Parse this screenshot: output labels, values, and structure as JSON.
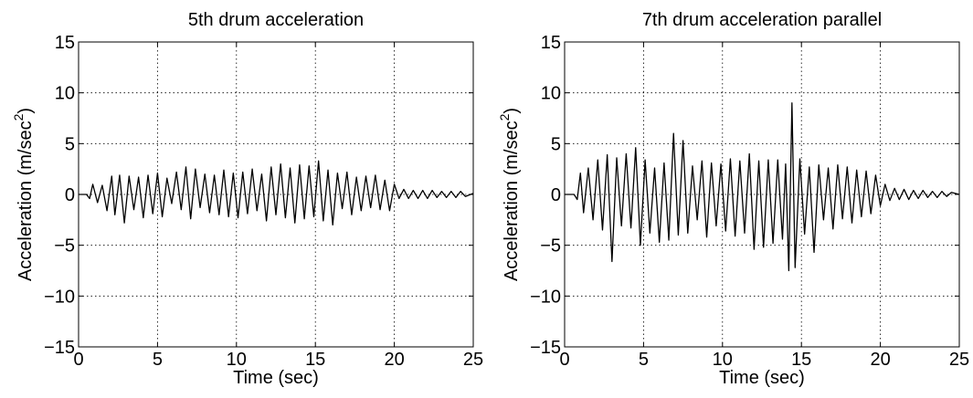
{
  "chart_data": [
    {
      "type": "line",
      "title": "5th drum acceleration",
      "xlabel": "Time (sec)",
      "ylabel": "Acceleration (m/sec",
      "ylabel_sup": "2",
      "ylabel_close": ")",
      "xlim": [
        0,
        25
      ],
      "ylim": [
        -15,
        15
      ],
      "xticks": [
        0,
        5,
        10,
        15,
        20,
        25
      ],
      "yticks": [
        -15,
        -10,
        -5,
        0,
        5,
        10,
        15
      ],
      "xtick_labels": [
        "0",
        "5",
        "10",
        "15",
        "20",
        "25"
      ],
      "ytick_labels": [
        "−15",
        "−10",
        "−5",
        "0",
        "5",
        "10",
        "15"
      ],
      "grid": true,
      "series": [
        {
          "color": "#000000",
          "x": [
            0.0,
            0.5,
            0.7,
            0.9,
            1.2,
            1.5,
            1.8,
            2.1,
            2.3,
            2.6,
            2.9,
            3.2,
            3.5,
            3.8,
            4.1,
            4.4,
            4.7,
            5.0,
            5.3,
            5.6,
            5.9,
            6.2,
            6.5,
            6.8,
            7.1,
            7.4,
            7.7,
            8.0,
            8.3,
            8.6,
            8.9,
            9.2,
            9.5,
            9.8,
            10.1,
            10.4,
            10.7,
            11.0,
            11.3,
            11.6,
            11.9,
            12.2,
            12.5,
            12.8,
            13.1,
            13.4,
            13.7,
            14.0,
            14.3,
            14.6,
            14.9,
            15.2,
            15.5,
            15.8,
            16.1,
            16.4,
            16.7,
            17.0,
            17.3,
            17.6,
            17.9,
            18.2,
            18.5,
            18.8,
            19.1,
            19.4,
            19.7,
            20.0,
            20.3,
            20.6,
            20.9,
            21.2,
            21.5,
            21.8,
            22.1,
            22.4,
            22.7,
            23.0,
            23.3,
            23.6,
            23.9,
            24.2,
            24.5,
            25.0
          ],
          "y": [
            0.0,
            0.0,
            -0.4,
            1.0,
            -0.8,
            0.9,
            -1.6,
            1.8,
            -2.0,
            1.9,
            -2.8,
            1.8,
            -1.5,
            1.7,
            -2.3,
            1.9,
            -1.9,
            2.1,
            -2.2,
            1.6,
            -0.9,
            2.2,
            -1.5,
            2.7,
            -2.4,
            2.5,
            -1.3,
            2.0,
            -1.8,
            1.9,
            -2.0,
            2.4,
            -2.2,
            2.1,
            -2.3,
            2.2,
            -1.9,
            2.5,
            -1.6,
            2.0,
            -2.6,
            2.7,
            -2.0,
            3.0,
            -2.3,
            2.6,
            -2.8,
            2.9,
            -2.4,
            2.8,
            -2.2,
            3.3,
            -2.6,
            2.4,
            -3.0,
            2.1,
            -1.4,
            2.2,
            -2.0,
            1.7,
            -1.6,
            1.8,
            -1.3,
            1.9,
            -1.5,
            1.4,
            -1.6,
            1.0,
            -0.4,
            0.5,
            -0.4,
            0.4,
            -0.4,
            0.4,
            -0.4,
            0.4,
            -0.3,
            0.3,
            -0.3,
            0.3,
            -0.3,
            0.3,
            -0.2,
            0.1
          ]
        }
      ]
    },
    {
      "type": "line",
      "title": "7th drum acceleration parallel",
      "xlabel": "Time (sec)",
      "ylabel": "Acceleration (m/sec",
      "ylabel_sup": "2",
      "ylabel_close": ")",
      "xlim": [
        0,
        25
      ],
      "ylim": [
        -15,
        15
      ],
      "xticks": [
        0,
        5,
        10,
        15,
        20,
        25
      ],
      "yticks": [
        -15,
        -10,
        -5,
        0,
        5,
        10,
        15
      ],
      "xtick_labels": [
        "0",
        "5",
        "10",
        "15",
        "20",
        "25"
      ],
      "ytick_labels": [
        "−15",
        "−10",
        "−5",
        "0",
        "5",
        "10",
        "15"
      ],
      "grid": true,
      "series": [
        {
          "color": "#000000",
          "x": [
            0.0,
            0.6,
            0.8,
            1.0,
            1.2,
            1.5,
            1.8,
            2.1,
            2.4,
            2.7,
            3.0,
            3.3,
            3.6,
            3.9,
            4.2,
            4.5,
            4.8,
            5.1,
            5.4,
            5.7,
            6.0,
            6.3,
            6.6,
            6.9,
            7.2,
            7.5,
            7.8,
            8.1,
            8.4,
            8.7,
            9.0,
            9.3,
            9.6,
            9.9,
            10.2,
            10.5,
            10.8,
            11.1,
            11.4,
            11.7,
            12.0,
            12.3,
            12.6,
            12.9,
            13.2,
            13.5,
            13.8,
            14.0,
            14.2,
            14.4,
            14.6,
            14.9,
            15.2,
            15.5,
            15.8,
            16.1,
            16.4,
            16.7,
            17.0,
            17.3,
            17.6,
            17.9,
            18.2,
            18.5,
            18.8,
            19.1,
            19.4,
            19.7,
            20.0,
            20.3,
            20.6,
            20.9,
            21.2,
            21.5,
            21.8,
            22.1,
            22.4,
            22.7,
            23.0,
            23.3,
            23.6,
            23.9,
            24.2,
            24.5,
            25.0
          ],
          "y": [
            0.0,
            0.0,
            -0.5,
            2.1,
            -1.8,
            2.6,
            -2.5,
            3.4,
            -3.5,
            3.9,
            -6.6,
            3.6,
            -3.1,
            4.0,
            -3.3,
            4.6,
            -5.0,
            3.4,
            -3.8,
            2.6,
            -4.7,
            3.1,
            -4.5,
            6.0,
            -4.0,
            5.3,
            -3.8,
            2.8,
            -2.5,
            3.3,
            -4.2,
            3.1,
            -3.1,
            3.0,
            -3.6,
            3.5,
            -4.1,
            3.3,
            -3.8,
            4.0,
            -5.4,
            3.3,
            -5.2,
            3.4,
            -4.8,
            3.4,
            -4.4,
            3.0,
            -7.5,
            9.0,
            -7.2,
            3.5,
            -3.9,
            2.7,
            -5.7,
            2.9,
            -2.5,
            2.6,
            -3.4,
            2.9,
            -2.4,
            2.7,
            -2.8,
            2.4,
            -2.2,
            2.3,
            -1.9,
            1.9,
            -1.1,
            1.0,
            -0.6,
            0.6,
            -0.5,
            0.5,
            -0.5,
            0.4,
            -0.4,
            0.4,
            -0.3,
            0.3,
            -0.3,
            0.3,
            -0.2,
            0.2,
            0.0
          ]
        }
      ]
    }
  ]
}
